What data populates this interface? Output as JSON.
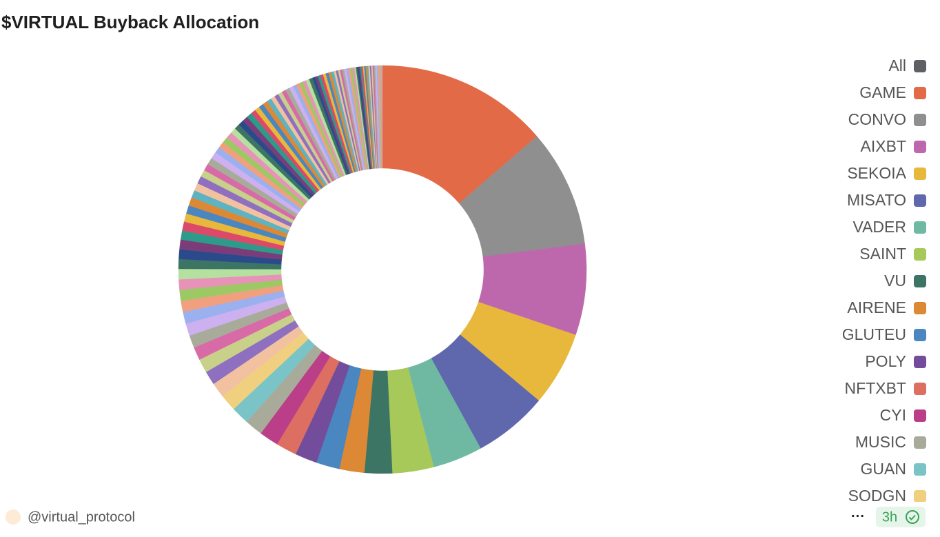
{
  "chart_data": {
    "type": "donut",
    "title": "$VIRTUAL Buyback Allocation",
    "legend_position": "right",
    "legend_all": {
      "label": "All",
      "color": "#5f6063"
    },
    "categories": [
      "GAME",
      "CONVO",
      "AIXBT",
      "SEKOIA",
      "MISATO",
      "VADER",
      "SAINT",
      "VU",
      "AIRENE",
      "GLUTEU",
      "POLY",
      "NFTXBT",
      "CYI",
      "MUSIC",
      "GUAN",
      "SODGN",
      null,
      null,
      null,
      null,
      null,
      null,
      null,
      null,
      null,
      null,
      null,
      null,
      null,
      null,
      null,
      null,
      null,
      null,
      null,
      null,
      null,
      null,
      null,
      null,
      null,
      null,
      null,
      null,
      null,
      null,
      null,
      null,
      null,
      null,
      null,
      null,
      null,
      null,
      null,
      null,
      null,
      null,
      null,
      null,
      null,
      null,
      null,
      null,
      null,
      null,
      null,
      null,
      null,
      null,
      null,
      null,
      null,
      null,
      null,
      null,
      null,
      null,
      null,
      null,
      null,
      null,
      null,
      null,
      null,
      null,
      null,
      null,
      null,
      null,
      null,
      null,
      null,
      null,
      null,
      null,
      null,
      null,
      null,
      null,
      null,
      null,
      null,
      null,
      null,
      null
    ],
    "values": [
      12.5,
      8.5,
      6.6,
      5.4,
      5.4,
      3.6,
      3.0,
      2.0,
      1.8,
      1.7,
      1.6,
      1.5,
      1.4,
      1.3,
      1.3,
      1.2,
      1.1,
      1.0,
      1.0,
      0.95,
      0.9,
      0.9,
      0.85,
      0.8,
      0.8,
      0.75,
      0.75,
      0.7,
      0.7,
      0.7,
      0.65,
      0.65,
      0.6,
      0.6,
      0.6,
      0.55,
      0.55,
      0.55,
      0.5,
      0.5,
      0.5,
      0.5,
      0.45,
      0.45,
      0.45,
      0.45,
      0.4,
      0.4,
      0.4,
      0.4,
      0.4,
      0.35,
      0.35,
      0.35,
      0.35,
      0.35,
      0.3,
      0.3,
      0.3,
      0.3,
      0.3,
      0.3,
      0.25,
      0.25,
      0.25,
      0.25,
      0.25,
      0.25,
      0.2,
      0.2,
      0.2,
      0.2,
      0.2,
      0.2,
      0.2,
      0.2,
      0.15,
      0.15,
      0.15,
      0.15,
      0.15,
      0.15,
      0.15,
      0.15,
      0.15,
      0.15,
      0.1,
      0.1,
      0.1,
      0.1,
      0.1,
      0.1,
      0.1,
      0.1,
      0.1,
      0.1,
      0.1,
      0.1,
      0.1,
      0.1,
      0.1,
      0.1,
      0.1,
      0.1,
      0.1,
      0.1
    ],
    "colors": [
      "#e36a47",
      "#8f8f8f",
      "#bd68ad",
      "#e8b83c",
      "#5f68ad",
      "#6fb9a2",
      "#a6c95a",
      "#3c7563",
      "#dc8834",
      "#4a86c0",
      "#734d9c",
      "#dd6e62",
      "#bb3f88",
      "#a9ab9a",
      "#7ac4c8",
      "#f0d07e"
    ],
    "palette": [
      "#a9ab9a",
      "#cdb0f0",
      "#9ab0ef",
      "#f0a07e",
      "#9dc964",
      "#e793b7",
      "#b6e0a0",
      "#3c7563",
      "#2b4a8c",
      "#7a3d7a",
      "#2e9a8a",
      "#dc4a6a",
      "#e8b83c",
      "#4a86c0",
      "#dc8834",
      "#5fb2c0",
      "#f2c2a0",
      "#8f6fbf",
      "#c8d08a",
      "#d86aa8"
    ]
  },
  "footer": {
    "handle": "@virtual_protocol",
    "more": "···",
    "age": "3h"
  }
}
